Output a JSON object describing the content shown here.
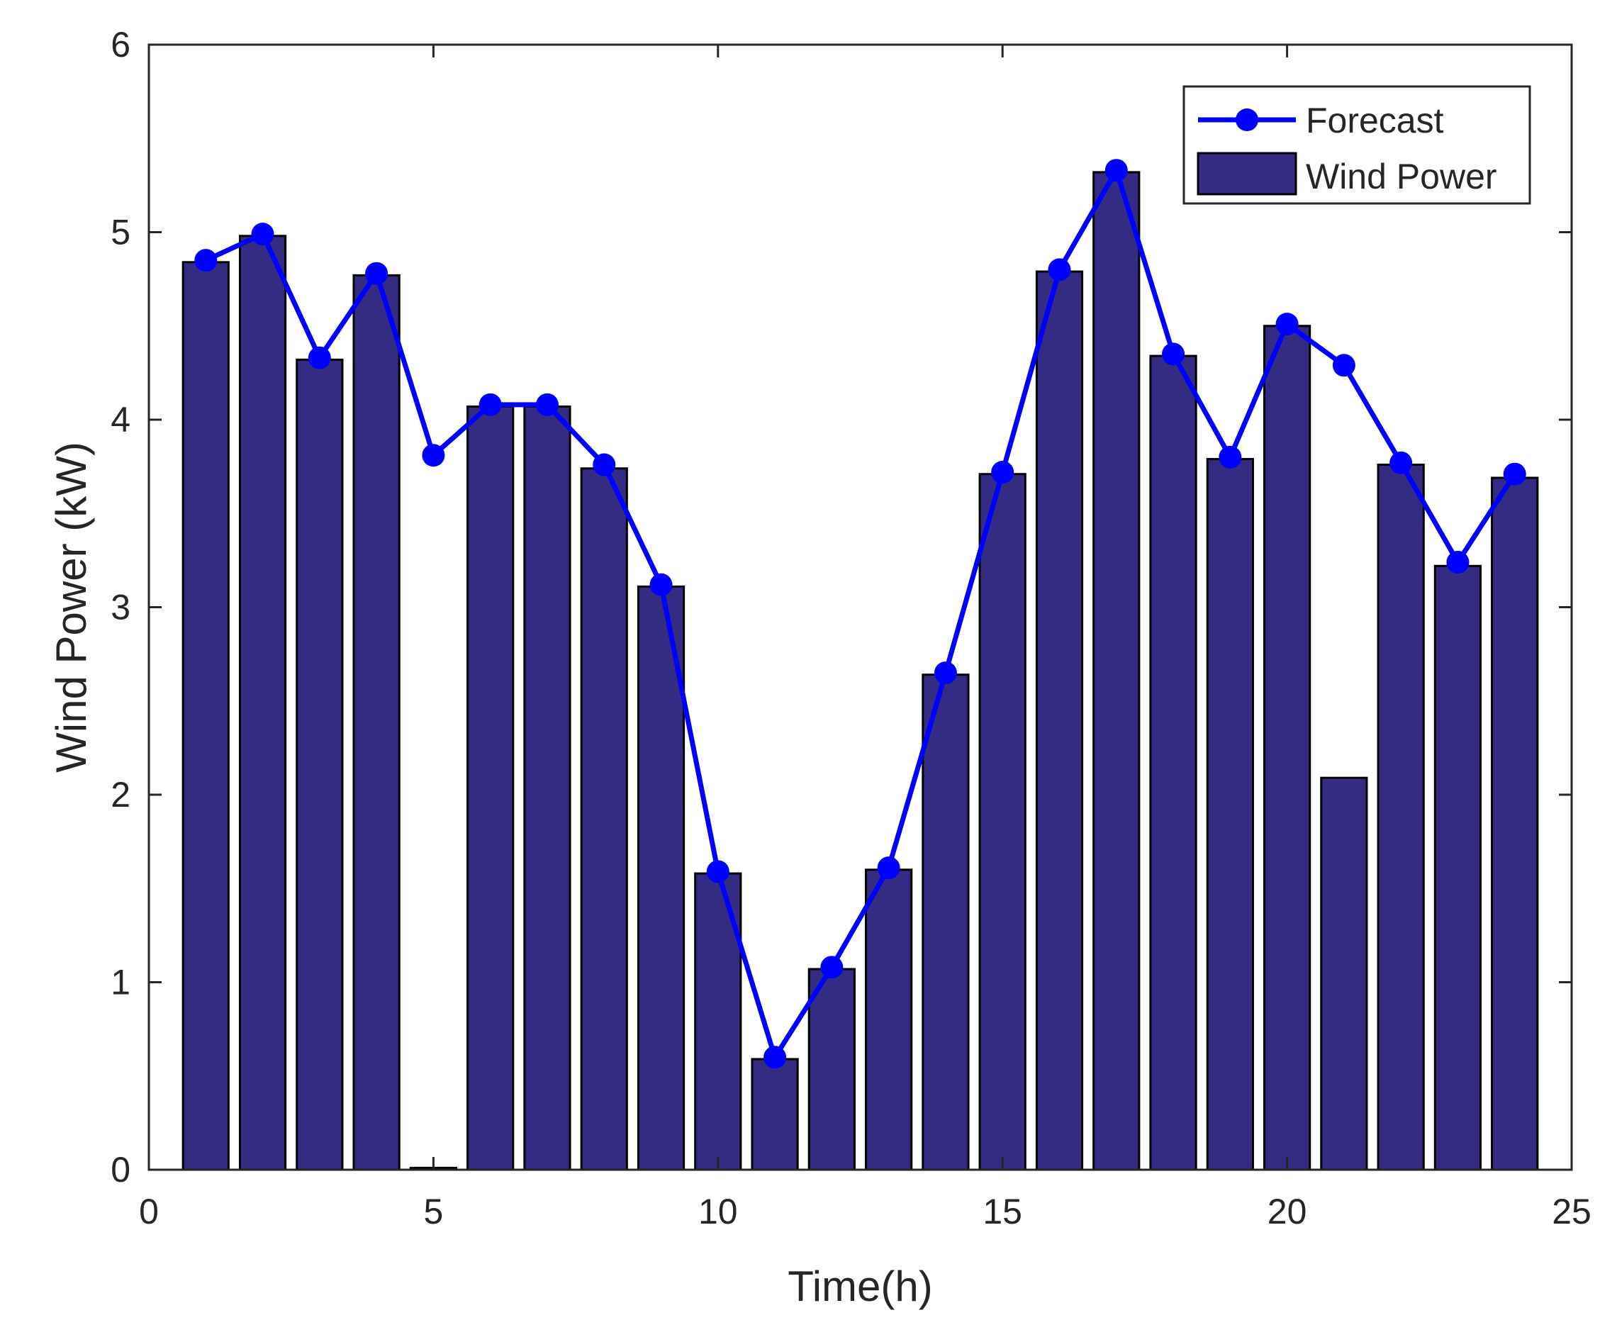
{
  "chart_data": {
    "type": "bar",
    "title": "",
    "xlabel": "Time(h)",
    "ylabel": "Wind Power (kW)",
    "xlim": [
      0,
      25
    ],
    "ylim": [
      0,
      6
    ],
    "xticks": [
      0,
      5,
      10,
      15,
      20,
      25
    ],
    "yticks": [
      0,
      1,
      2,
      3,
      4,
      5,
      6
    ],
    "grid": false,
    "legend_position": "top-right",
    "x": [
      1,
      2,
      3,
      4,
      5,
      6,
      7,
      8,
      9,
      10,
      11,
      12,
      13,
      14,
      15,
      16,
      17,
      18,
      19,
      20,
      21,
      22,
      23,
      24
    ],
    "series": [
      {
        "name": "Forecast",
        "kind": "line",
        "color": "#0000FF",
        "values": [
          4.85,
          4.99,
          4.33,
          4.78,
          3.81,
          4.08,
          4.08,
          3.76,
          3.12,
          1.59,
          0.6,
          1.08,
          1.61,
          2.65,
          3.72,
          4.8,
          5.33,
          4.35,
          3.8,
          4.51,
          4.29,
          3.77,
          3.24,
          3.71
        ]
      },
      {
        "name": "Wind Power",
        "kind": "bar",
        "color": "#332C82",
        "values": [
          4.84,
          4.98,
          4.32,
          4.77,
          0.01,
          4.07,
          4.07,
          3.74,
          3.11,
          1.58,
          0.59,
          1.07,
          1.6,
          2.64,
          3.71,
          4.79,
          5.32,
          4.34,
          3.79,
          4.5,
          2.09,
          3.76,
          3.22,
          3.69
        ]
      }
    ]
  }
}
